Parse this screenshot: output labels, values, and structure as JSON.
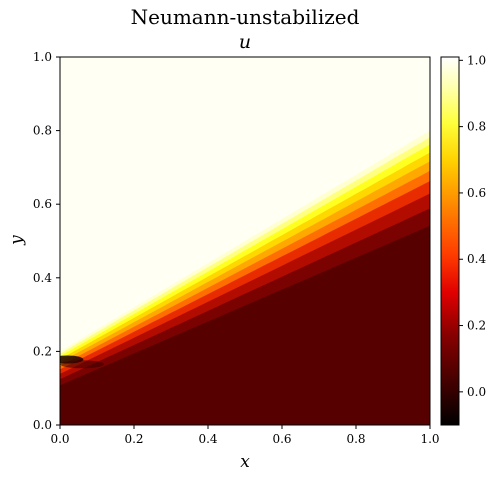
{
  "figure": {
    "suptitle": "Neumann-unstabilized"
  },
  "chart_data": {
    "type": "heatmap",
    "title": "u",
    "xlabel": "x",
    "ylabel": "y",
    "xlim": [
      0.0,
      1.0
    ],
    "ylim": [
      0.0,
      1.0
    ],
    "x_ticks": [
      "0.0",
      "0.2",
      "0.4",
      "0.6",
      "0.8",
      "1.0"
    ],
    "y_ticks": [
      "0.0",
      "0.2",
      "0.4",
      "0.6",
      "0.8",
      "1.0"
    ],
    "colormap": "hot",
    "colorbar": {
      "vmin": -0.1,
      "vmax": 1.01,
      "ticks": [
        "0.0",
        "0.2",
        "0.4",
        "0.6",
        "0.8",
        "1.0"
      ]
    },
    "field": {
      "description_values": "u ≈ 1 above the line y = 0.2 + 0.6x, u ≈ 0 below, with a thin transition layer and slight undershoot near x = 0",
      "interface_intercept": 0.2,
      "interface_slope": 0.6,
      "upper_value": 1.0,
      "lower_value": 0.0,
      "min_value": -0.1
    }
  }
}
